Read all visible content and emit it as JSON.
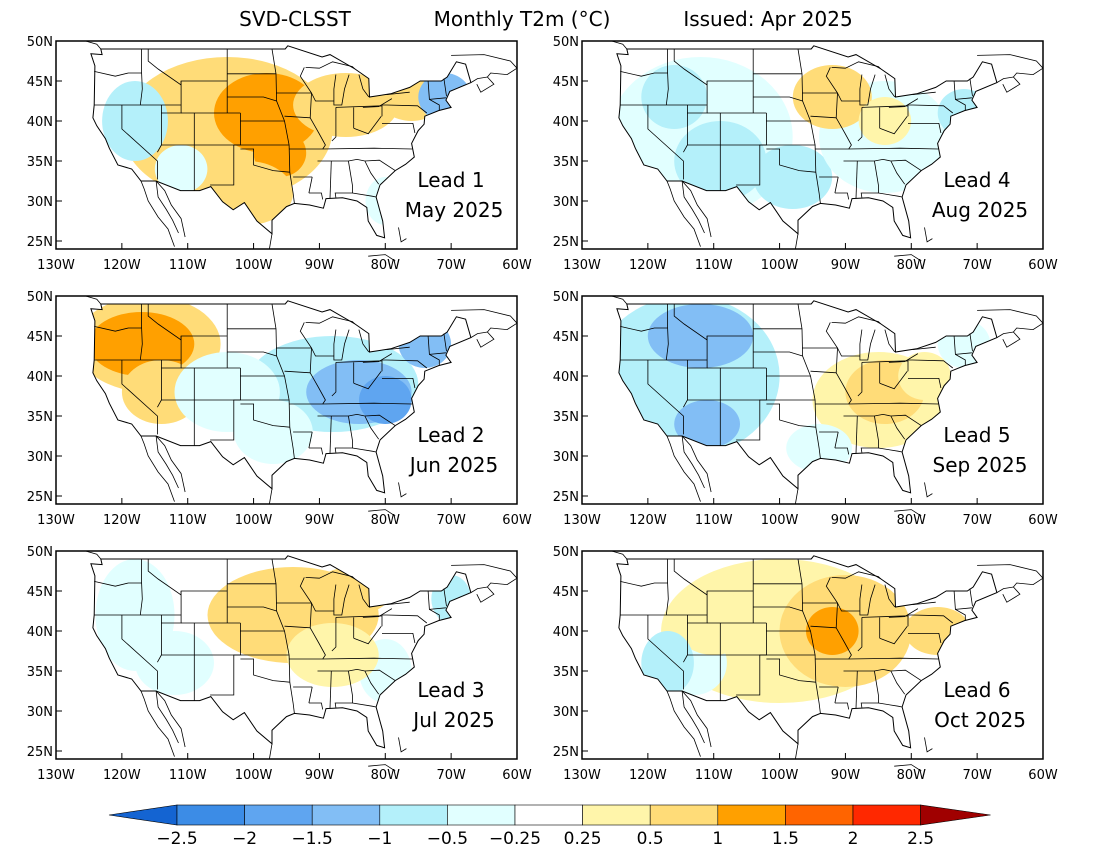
{
  "title": {
    "model": "SVD-CLSST",
    "variable": "Monthly T2m (°C)",
    "issued": "Issued: Apr 2025"
  },
  "axes": {
    "lat_labels": [
      "50N",
      "45N",
      "40N",
      "35N",
      "30N",
      "25N"
    ],
    "lon_labels": [
      "130W",
      "120W",
      "110W",
      "100W",
      "90W",
      "80W",
      "70W",
      "60W"
    ],
    "lat_range": [
      24,
      50
    ],
    "lon_range": [
      -130,
      -60
    ]
  },
  "panels": [
    {
      "lead": "Lead 1",
      "month": "May 2025",
      "pattern": "central-plains-warm"
    },
    {
      "lead": "Lead 4",
      "month": "Aug 2025",
      "pattern": "west-cool"
    },
    {
      "lead": "Lead 2",
      "month": "Jun 2025",
      "pattern": "northwest-warm-east-cool"
    },
    {
      "lead": "Lead 5",
      "month": "Sep 2025",
      "pattern": "west-cool-east-warm"
    },
    {
      "lead": "Lead 3",
      "month": "Jul 2025",
      "pattern": "north-central-warm"
    },
    {
      "lead": "Lead 6",
      "month": "Oct 2025",
      "pattern": "central-warm"
    }
  ],
  "colorbar": {
    "labels": [
      "-2.5",
      "-2",
      "-1.5",
      "-1",
      "-0.5",
      "-0.25",
      "0.25",
      "0.5",
      "1",
      "1.5",
      "2",
      "2.5"
    ],
    "colors": [
      "#1464d2",
      "#3c8ce6",
      "#5fa5f0",
      "#82bef5",
      "#b4f0fa",
      "#e1ffff",
      "#ffffff",
      "#fff5aa",
      "#ffdc78",
      "#ffa000",
      "#ff6400",
      "#ff2800",
      "#a00000"
    ]
  }
}
